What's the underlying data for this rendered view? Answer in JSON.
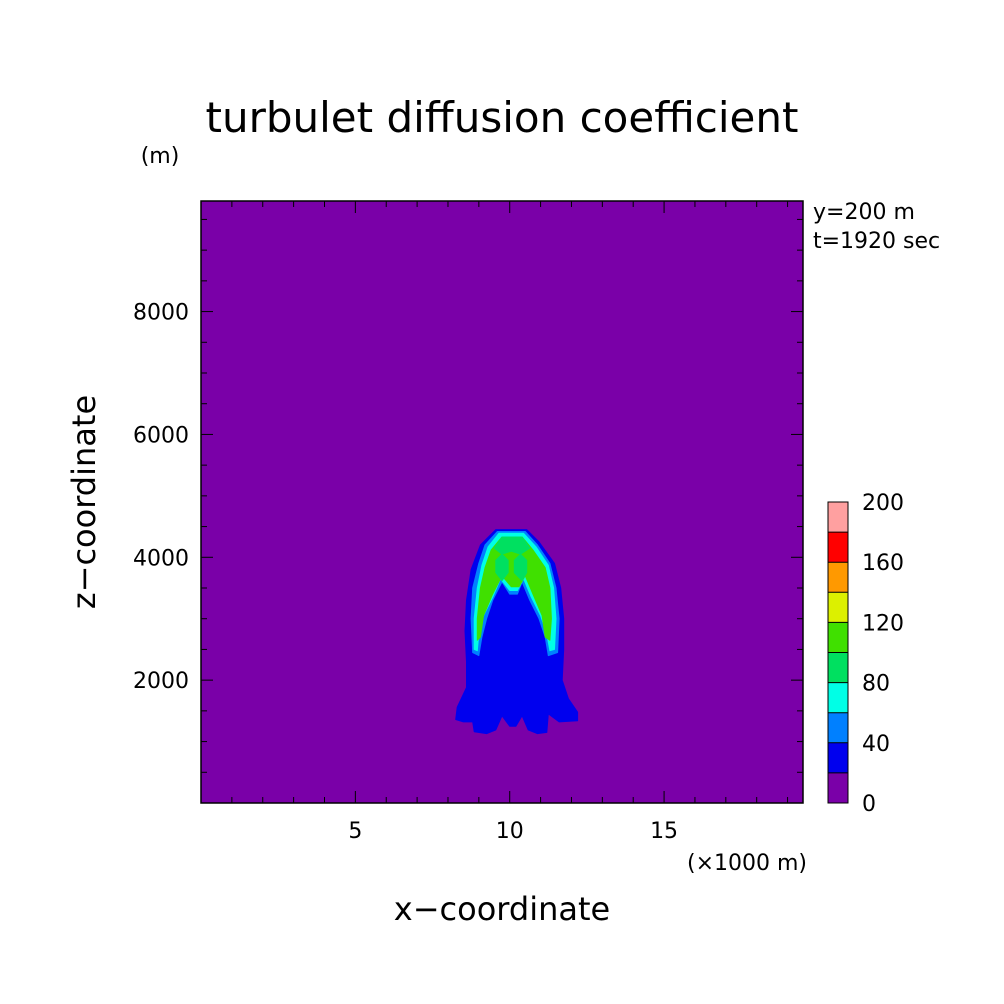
{
  "chart_data": {
    "type": "heatmap",
    "title": "turbulet diffusion coefficient",
    "xlabel": "x−coordinate",
    "ylabel": "z−coordinate",
    "x_unit": "(×1000 m)",
    "y_unit": "(m)",
    "annotations": [
      "y=200 m",
      "t=1920 sec"
    ],
    "xlim": [
      0,
      19.5
    ],
    "ylim": [
      0,
      9800
    ],
    "x_ticks": [
      {
        "value": 5,
        "label": "5"
      },
      {
        "value": 10,
        "label": "10"
      },
      {
        "value": 15,
        "label": "15"
      }
    ],
    "y_ticks": [
      {
        "value": 2000,
        "label": "2000"
      },
      {
        "value": 4000,
        "label": "4000"
      },
      {
        "value": 6000,
        "label": "6000"
      },
      {
        "value": 8000,
        "label": "8000"
      }
    ],
    "colorbar": {
      "levels": [
        0,
        20,
        40,
        60,
        80,
        100,
        120,
        140,
        160,
        180,
        200
      ],
      "tick_labels": [
        "0",
        "40",
        "80",
        "120",
        "160",
        "200"
      ],
      "colors": [
        "#7a00a8",
        "#0000ee",
        "#0080ff",
        "#00ffe6",
        "#00e060",
        "#40e000",
        "#dcf000",
        "#ff9900",
        "#ff0000",
        "#ffa0a0"
      ]
    },
    "background_color": "#7a00a8",
    "contours": [
      {
        "level": "0-20",
        "color": "#7a00a8",
        "polygons": []
      },
      {
        "level": "20-40",
        "color": "#0000ee",
        "polygons": [
          [
            [
              9.55,
              4450
            ],
            [
              10.55,
              4450
            ],
            [
              10.95,
              4250
            ],
            [
              11.45,
              3900
            ],
            [
              11.65,
              3500
            ],
            [
              11.75,
              3000
            ],
            [
              11.75,
              2500
            ],
            [
              11.7,
              2000
            ],
            [
              11.9,
              1700
            ],
            [
              12.2,
              1480
            ],
            [
              12.2,
              1340
            ],
            [
              11.6,
              1320
            ],
            [
              11.25,
              1450
            ],
            [
              11.2,
              1150
            ],
            [
              10.9,
              1130
            ],
            [
              10.6,
              1190
            ],
            [
              10.4,
              1420
            ],
            [
              10.2,
              1250
            ],
            [
              10.0,
              1250
            ],
            [
              9.75,
              1420
            ],
            [
              9.55,
              1190
            ],
            [
              9.25,
              1130
            ],
            [
              8.85,
              1160
            ],
            [
              8.8,
              1320
            ],
            [
              8.5,
              1320
            ],
            [
              8.25,
              1360
            ],
            [
              8.3,
              1560
            ],
            [
              8.6,
              1880
            ],
            [
              8.6,
              2300
            ],
            [
              8.55,
              2800
            ],
            [
              8.6,
              3300
            ],
            [
              8.75,
              3800
            ],
            [
              9.05,
              4200
            ]
          ],
          [
            [
              9.3,
              1540
            ],
            [
              9.55,
              1460
            ],
            [
              9.55,
              1260
            ],
            [
              9.35,
              1180
            ],
            [
              9.0,
              1200
            ],
            [
              9.05,
              1420
            ]
          ],
          [
            [
              10.75,
              1540
            ],
            [
              10.6,
              1460
            ],
            [
              10.6,
              1260
            ],
            [
              10.8,
              1180
            ],
            [
              11.15,
              1200
            ],
            [
              11.1,
              1420
            ]
          ]
        ]
      },
      {
        "level": "40-60",
        "color": "#0080ff",
        "polygons": [
          [
            [
              9.6,
              4420
            ],
            [
              10.5,
              4420
            ],
            [
              10.9,
              4200
            ],
            [
              11.3,
              3900
            ],
            [
              11.5,
              3500
            ],
            [
              11.6,
              3000
            ],
            [
              11.55,
              2450
            ],
            [
              11.25,
              2400
            ],
            [
              11.15,
              2700
            ],
            [
              10.95,
              3000
            ],
            [
              10.65,
              3300
            ],
            [
              10.4,
              3600
            ],
            [
              10.25,
              3400
            ],
            [
              10.0,
              3400
            ],
            [
              9.75,
              3600
            ],
            [
              9.45,
              3300
            ],
            [
              9.25,
              3000
            ],
            [
              9.1,
              2700
            ],
            [
              9.0,
              2400
            ],
            [
              8.8,
              2450
            ],
            [
              8.75,
              3000
            ],
            [
              8.8,
              3500
            ],
            [
              9.0,
              3900
            ],
            [
              9.2,
              4200
            ]
          ]
        ]
      },
      {
        "level": "60-80",
        "color": "#00ffe6",
        "polygons": [
          [
            [
              9.65,
              4390
            ],
            [
              10.45,
              4390
            ],
            [
              10.85,
              4170
            ],
            [
              11.25,
              3870
            ],
            [
              11.42,
              3500
            ],
            [
              11.5,
              3000
            ],
            [
              11.45,
              2500
            ],
            [
              11.3,
              2480
            ],
            [
              11.2,
              2750
            ],
            [
              11.0,
              3050
            ],
            [
              10.7,
              3350
            ],
            [
              10.45,
              3650
            ],
            [
              10.25,
              3460
            ],
            [
              10.0,
              3460
            ],
            [
              9.7,
              3650
            ],
            [
              9.45,
              3350
            ],
            [
              9.15,
              3050
            ],
            [
              9.0,
              2750
            ],
            [
              8.95,
              2480
            ],
            [
              8.85,
              2500
            ],
            [
              8.85,
              3000
            ],
            [
              8.95,
              3500
            ],
            [
              9.1,
              3870
            ],
            [
              9.3,
              4170
            ]
          ]
        ]
      },
      {
        "level": "100-120",
        "color": "#40e000",
        "polygons": [
          [
            [
              9.75,
              4330
            ],
            [
              10.4,
              4330
            ],
            [
              10.75,
              4120
            ],
            [
              11.15,
              3830
            ],
            [
              11.3,
              3500
            ],
            [
              11.35,
              3000
            ],
            [
              11.3,
              2650
            ],
            [
              11.15,
              2700
            ],
            [
              11.05,
              3050
            ],
            [
              10.75,
              3400
            ],
            [
              10.5,
              3700
            ],
            [
              10.3,
              3520
            ],
            [
              10.05,
              3520
            ],
            [
              9.75,
              3700
            ],
            [
              9.45,
              3400
            ],
            [
              9.15,
              3050
            ],
            [
              9.05,
              2700
            ],
            [
              8.95,
              2650
            ],
            [
              8.95,
              3000
            ],
            [
              9.05,
              3500
            ],
            [
              9.2,
              3830
            ],
            [
              9.4,
              4120
            ]
          ]
        ]
      },
      {
        "level": "80-100",
        "color": "#00e060",
        "polygons": [
          [
            [
              9.75,
              4330
            ],
            [
              10.4,
              4330
            ],
            [
              10.65,
              4150
            ],
            [
              10.35,
              4050
            ],
            [
              10.05,
              4100
            ],
            [
              9.75,
              4050
            ],
            [
              9.5,
              4150
            ]
          ],
          [
            [
              9.75,
              4050
            ],
            [
              9.95,
              3950
            ],
            [
              9.95,
              3750
            ],
            [
              9.75,
              3620
            ],
            [
              9.55,
              3750
            ],
            [
              9.55,
              3950
            ]
          ],
          [
            [
              10.35,
              4050
            ],
            [
              10.55,
              3950
            ],
            [
              10.55,
              3750
            ],
            [
              10.4,
              3620
            ],
            [
              10.15,
              3750
            ],
            [
              10.15,
              3950
            ]
          ]
        ]
      }
    ]
  }
}
